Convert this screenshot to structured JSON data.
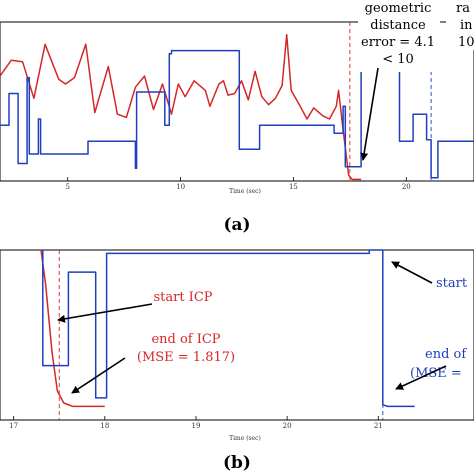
{
  "chart_data": [
    {
      "type": "line",
      "panel_label": "(a)",
      "xlabel": "Time (sec)",
      "x_ticks": [
        "5",
        "10",
        "15",
        "20"
      ],
      "xlim": [
        2.0,
        23.0
      ],
      "ylim": [
        0,
        10
      ],
      "series": [
        {
          "color": "#d62728",
          "points": [
            [
              2.0,
              6.6
            ],
            [
              2.5,
              7.6
            ],
            [
              3.0,
              7.5
            ],
            [
              3.5,
              5.2
            ],
            [
              4.0,
              8.6
            ],
            [
              4.6,
              6.4
            ],
            [
              4.9,
              6.1
            ],
            [
              5.3,
              6.5
            ],
            [
              5.8,
              8.6
            ],
            [
              6.2,
              4.3
            ],
            [
              6.8,
              7.2
            ],
            [
              7.2,
              4.2
            ],
            [
              7.6,
              4.0
            ],
            [
              8.0,
              5.9
            ],
            [
              8.4,
              6.6
            ],
            [
              8.8,
              4.5
            ],
            [
              9.2,
              6.1
            ],
            [
              9.6,
              4.2
            ],
            [
              9.9,
              6.1
            ],
            [
              10.2,
              5.3
            ],
            [
              10.6,
              6.3
            ],
            [
              11.1,
              5.7
            ],
            [
              11.3,
              4.7
            ],
            [
              11.7,
              6.1
            ],
            [
              11.9,
              6.3
            ],
            [
              12.1,
              5.4
            ],
            [
              12.4,
              5.5
            ],
            [
              12.7,
              6.3
            ],
            [
              13.0,
              5.1
            ],
            [
              13.3,
              6.9
            ],
            [
              13.6,
              5.3
            ],
            [
              13.9,
              4.8
            ],
            [
              14.2,
              5.2
            ],
            [
              14.5,
              6.0
            ],
            [
              14.7,
              9.2
            ],
            [
              14.9,
              5.7
            ],
            [
              15.3,
              4.7
            ],
            [
              15.6,
              3.9
            ],
            [
              15.9,
              4.6
            ],
            [
              16.3,
              4.1
            ],
            [
              16.6,
              3.9
            ],
            [
              16.9,
              4.7
            ],
            [
              17.0,
              5.7
            ],
            [
              17.2,
              3.2
            ],
            [
              17.45,
              0.35
            ],
            [
              17.6,
              0.1
            ],
            [
              18.0,
              0.1
            ]
          ]
        },
        {
          "color": "#1f3fbf",
          "points": [
            [
              2.0,
              3.5
            ],
            [
              2.4,
              3.5
            ],
            [
              2.4,
              5.5
            ],
            [
              2.8,
              5.5
            ],
            [
              2.8,
              1.1
            ],
            [
              3.2,
              1.1
            ],
            [
              3.2,
              6.5
            ],
            [
              3.3,
              6.5
            ],
            [
              3.3,
              1.7
            ],
            [
              3.7,
              1.7
            ],
            [
              3.7,
              3.9
            ],
            [
              3.8,
              3.9
            ],
            [
              3.8,
              1.7
            ],
            [
              5.9,
              1.7
            ],
            [
              5.9,
              2.5
            ],
            [
              8.0,
              2.5
            ],
            [
              8.0,
              0.8
            ],
            [
              8.05,
              0.8
            ],
            [
              8.05,
              5.6
            ],
            [
              9.3,
              5.6
            ],
            [
              9.3,
              3.5
            ],
            [
              9.5,
              3.5
            ],
            [
              9.5,
              8.0
            ],
            [
              9.6,
              8.0
            ],
            [
              9.6,
              8.2
            ],
            [
              12.6,
              8.2
            ],
            [
              12.6,
              2.0
            ],
            [
              13.5,
              2.0
            ],
            [
              13.5,
              3.5
            ],
            [
              16.8,
              3.5
            ],
            [
              16.8,
              3.0
            ],
            [
              17.2,
              3.0
            ],
            [
              17.2,
              4.7
            ],
            [
              17.3,
              4.7
            ],
            [
              17.3,
              0.9
            ],
            [
              18.0,
              0.9
            ],
            [
              18.0,
              7.6
            ],
            [
              19.7,
              7.6
            ],
            [
              19.7,
              2.5
            ],
            [
              20.3,
              2.5
            ],
            [
              20.3,
              4.2
            ],
            [
              20.9,
              4.2
            ],
            [
              20.9,
              2.6
            ],
            [
              21.1,
              2.6
            ],
            [
              21.1,
              0.2
            ],
            [
              21.4,
              0.2
            ],
            [
              21.4,
              2.5
            ],
            [
              23.0,
              2.5
            ]
          ]
        }
      ],
      "annotations": [
        {
          "lines": [
            "geometric",
            "distance",
            "error = 4.1",
            "< 10"
          ],
          "color": "#000000"
        },
        {
          "lines": [
            "ra",
            "in",
            "10"
          ],
          "color": "#000000"
        }
      ],
      "markers": [
        {
          "x": 17.5,
          "color": "#d62728",
          "style": "dashed"
        },
        {
          "x": 21.1,
          "color": "#1f3fbf",
          "style": "dashed"
        }
      ]
    },
    {
      "type": "line",
      "panel_label": "(b)",
      "xlabel": "Time (sec)",
      "x_ticks": [
        "17",
        "18",
        "19",
        "20",
        "21"
      ],
      "xlim": [
        16.85,
        22.05
      ],
      "ylim": [
        0,
        10
      ],
      "series": [
        {
          "color": "#d62728",
          "points": [
            [
              17.3,
              10.0
            ],
            [
              17.35,
              8.0
            ],
            [
              17.42,
              4.0
            ],
            [
              17.48,
              1.7
            ],
            [
              17.55,
              1.0
            ],
            [
              17.65,
              0.8
            ],
            [
              18.0,
              0.8
            ]
          ]
        },
        {
          "color": "#1f3fbf",
          "points": [
            [
              17.32,
              10.0
            ],
            [
              17.32,
              3.2
            ],
            [
              17.6,
              3.2
            ],
            [
              17.6,
              8.7
            ],
            [
              17.9,
              8.7
            ],
            [
              17.9,
              1.3
            ],
            [
              18.02,
              1.3
            ],
            [
              18.02,
              9.8
            ],
            [
              20.9,
              9.8
            ],
            [
              20.9,
              10.0
            ],
            [
              21.05,
              10.0
            ],
            [
              21.05,
              0.9
            ],
            [
              21.1,
              0.8
            ],
            [
              21.4,
              0.8
            ]
          ]
        }
      ],
      "annotations": [
        {
          "text": "start ICP",
          "color": "#d62728"
        },
        {
          "lines": [
            "end of ICP",
            "(MSE = 1.817)"
          ],
          "color": "#d62728"
        },
        {
          "text": "start",
          "color": "#1f3fbf"
        },
        {
          "lines": [
            "end of",
            "(MSE ="
          ],
          "color": "#1f3fbf"
        }
      ],
      "markers": [
        {
          "x": 17.5,
          "color": "#d62728",
          "style": "dashed"
        },
        {
          "x": 21.05,
          "color": "#1f3fbf",
          "style": "dashed"
        }
      ]
    }
  ]
}
